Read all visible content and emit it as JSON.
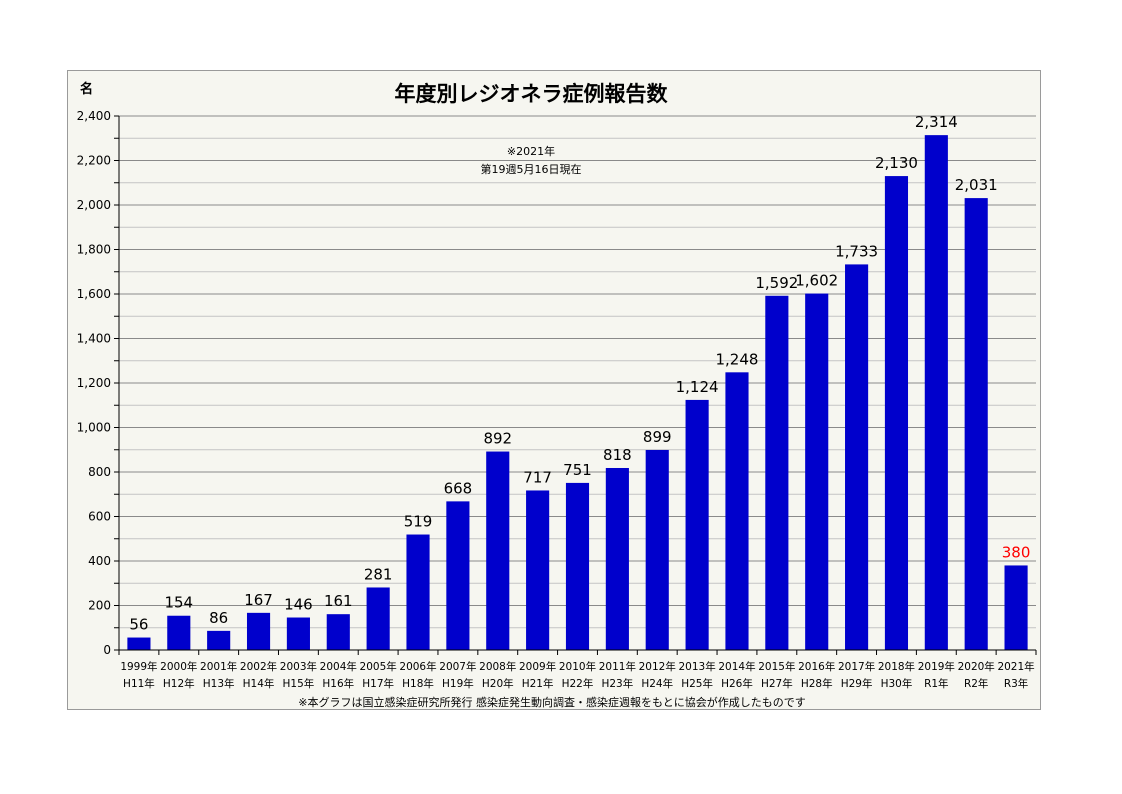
{
  "chart_data": {
    "type": "bar",
    "title": "年度別レジオネラ症例報告数",
    "ylabel": "名",
    "ylim": [
      0,
      2400
    ],
    "yticks": [
      0,
      200,
      400,
      600,
      800,
      1000,
      1200,
      1400,
      1600,
      1800,
      2000,
      2200,
      2400
    ],
    "ytick_labels": [
      "0",
      "200",
      "400",
      "600",
      "800",
      "1,000",
      "1,200",
      "1,400",
      "1,600",
      "1,800",
      "2,000",
      "2,200",
      "2,400"
    ],
    "grid": true,
    "categories": [
      [
        "1999年",
        "H11年"
      ],
      [
        "2000年",
        "H12年"
      ],
      [
        "2001年",
        "H13年"
      ],
      [
        "2002年",
        "H14年"
      ],
      [
        "2003年",
        "H15年"
      ],
      [
        "2004年",
        "H16年"
      ],
      [
        "2005年",
        "H17年"
      ],
      [
        "2006年",
        "H18年"
      ],
      [
        "2007年",
        "H19年"
      ],
      [
        "2008年",
        "H20年"
      ],
      [
        "2009年",
        "H21年"
      ],
      [
        "2010年",
        "H22年"
      ],
      [
        "2011年",
        "H23年"
      ],
      [
        "2012年",
        "H24年"
      ],
      [
        "2013年",
        "H25年"
      ],
      [
        "2014年",
        "H26年"
      ],
      [
        "2015年",
        "H27年"
      ],
      [
        "2016年",
        "H28年"
      ],
      [
        "2017年",
        "H29年"
      ],
      [
        "2018年",
        "H30年"
      ],
      [
        "2019年",
        "R1年"
      ],
      [
        "2020年",
        "R2年"
      ],
      [
        "2021年",
        "R3年"
      ]
    ],
    "values": [
      56,
      154,
      86,
      167,
      146,
      161,
      281,
      519,
      668,
      892,
      717,
      751,
      818,
      899,
      1124,
      1248,
      1592,
      1602,
      1733,
      2130,
      2314,
      2031,
      380
    ],
    "value_labels": [
      "56",
      "154",
      "86",
      "167",
      "146",
      "161",
      "281",
      "519",
      "668",
      "892",
      "717",
      "751",
      "818",
      "899",
      "1,124",
      "1,248",
      "1,592",
      "1,602",
      "1,733",
      "2,130",
      "2,314",
      "2,031",
      "380"
    ],
    "bar_color": "#0000cc",
    "label_color": "#000000",
    "highlight_label_color": "#ff0000",
    "highlight_index": 22,
    "annotation": [
      "※2021年",
      "第19週5月16日現在"
    ],
    "footnote": "※本グラフは国立感染症研究所発行 感染症発生動向調査・感染症週報をもとに協会が作成したものです"
  }
}
